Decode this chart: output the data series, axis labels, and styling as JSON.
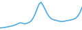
{
  "x": [
    0,
    1,
    2,
    3,
    4,
    5,
    6,
    7,
    8,
    9,
    10,
    11,
    12,
    13,
    14,
    15,
    16,
    17,
    18,
    19,
    20,
    21,
    22,
    23,
    24,
    25,
    26,
    27,
    28,
    29,
    30,
    31,
    32,
    33,
    34,
    35,
    36,
    37,
    38,
    39,
    40
  ],
  "y": [
    1,
    1.1,
    1.2,
    1.4,
    1.6,
    1.8,
    2.0,
    2.3,
    2.7,
    3.2,
    3.5,
    3.3,
    3.0,
    3.2,
    3.6,
    4.2,
    5.5,
    7.5,
    10.0,
    12.5,
    13.5,
    12.0,
    10.0,
    8.0,
    6.5,
    5.5,
    5.0,
    4.8,
    4.5,
    4.3,
    4.1,
    4.2,
    4.4,
    4.6,
    4.8,
    5.0,
    5.3,
    5.8,
    6.8,
    8.5,
    11.0
  ],
  "line_color": "#4ca8dc",
  "background_color": "#ffffff",
  "linewidth": 1.2
}
